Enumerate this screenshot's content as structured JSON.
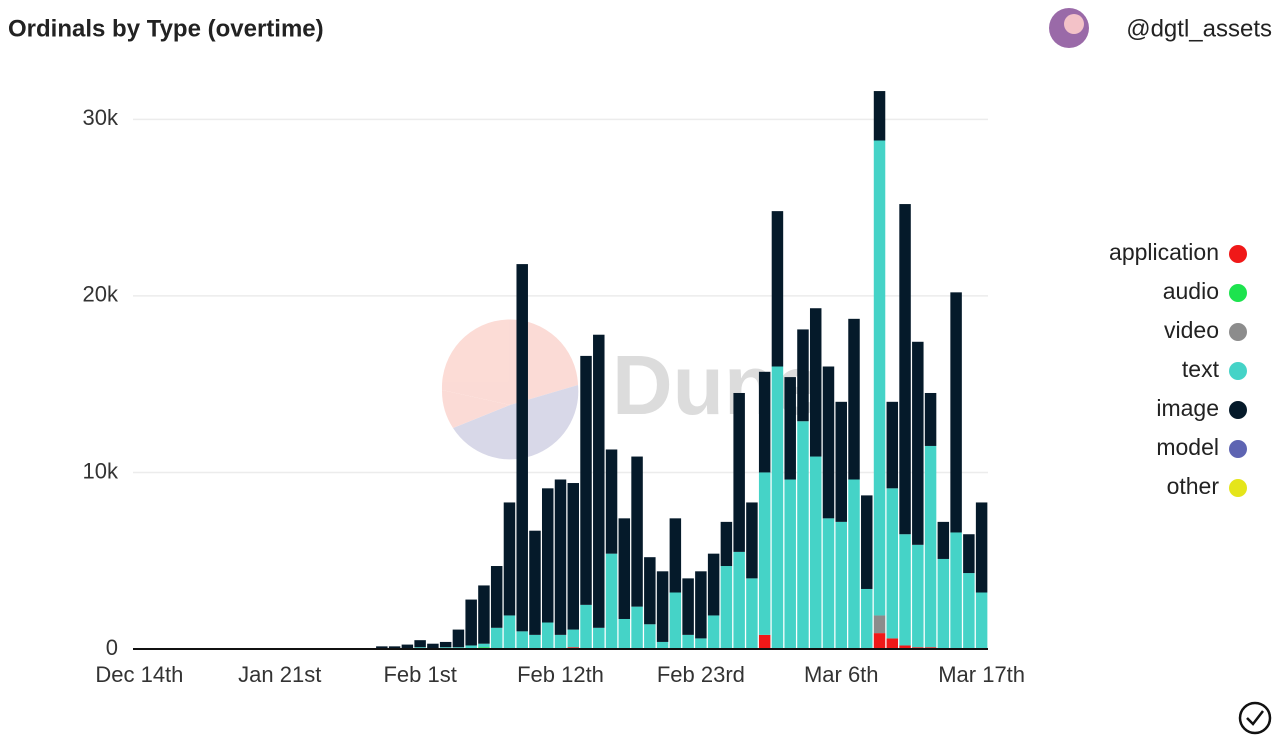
{
  "chart_data": {
    "type": "stacked_bar",
    "title": "Ordinals by Type (overtime)",
    "author": "@dgtl_assets",
    "watermark": "Dune",
    "categories": [
      "Dec 14th",
      null,
      null,
      null,
      null,
      null,
      null,
      null,
      null,
      null,
      null,
      "Jan 21st",
      null,
      null,
      null,
      null,
      null,
      null,
      null,
      null,
      null,
      null,
      "Feb 1st",
      null,
      null,
      null,
      null,
      null,
      null,
      null,
      null,
      null,
      null,
      "Feb 12th",
      null,
      null,
      null,
      null,
      null,
      null,
      null,
      null,
      null,
      null,
      "Feb 23rd",
      null,
      null,
      null,
      null,
      null,
      null,
      null,
      null,
      null,
      null,
      "Mar 6th",
      null,
      null,
      null,
      null,
      null,
      null,
      null,
      null,
      null,
      null,
      "Mar 17th"
    ],
    "series": [
      {
        "name": "application",
        "color": "#f01818",
        "values": [
          0,
          0,
          0,
          0,
          0,
          0,
          0,
          0,
          0,
          0,
          0,
          0,
          0,
          0,
          0,
          0,
          0,
          0,
          0,
          0,
          0,
          0,
          0,
          0,
          0,
          0,
          0,
          0,
          0,
          0,
          0,
          0,
          0,
          0,
          100,
          0,
          0,
          0,
          0,
          0,
          0,
          0,
          0,
          0,
          0,
          0,
          0,
          0,
          0,
          800,
          0,
          0,
          0,
          0,
          0,
          0,
          0,
          0,
          900,
          600,
          200,
          100,
          100,
          0,
          0,
          0,
          0
        ]
      },
      {
        "name": "audio",
        "color": "#1de34e",
        "values": [
          0,
          0,
          0,
          0,
          0,
          0,
          0,
          0,
          0,
          0,
          0,
          0,
          0,
          0,
          0,
          0,
          0,
          0,
          0,
          0,
          0,
          0,
          0,
          0,
          0,
          0,
          0,
          100,
          0,
          0,
          0,
          0,
          0,
          0,
          0,
          0,
          0,
          0,
          0,
          0,
          0,
          0,
          0,
          0,
          0,
          0,
          0,
          0,
          0,
          0,
          0,
          0,
          0,
          0,
          0,
          0,
          0,
          0,
          0,
          0,
          0,
          0,
          0,
          0,
          0,
          0,
          0
        ]
      },
      {
        "name": "video",
        "color": "#8c8c8c",
        "values": [
          0,
          0,
          0,
          0,
          0,
          0,
          0,
          0,
          0,
          0,
          0,
          0,
          0,
          0,
          0,
          0,
          0,
          0,
          0,
          0,
          0,
          0,
          0,
          0,
          0,
          0,
          0,
          0,
          0,
          0,
          0,
          0,
          0,
          0,
          0,
          0,
          0,
          0,
          0,
          0,
          0,
          0,
          0,
          0,
          0,
          0,
          0,
          0,
          0,
          0,
          0,
          0,
          0,
          0,
          0,
          0,
          0,
          0,
          1000,
          0,
          0,
          0,
          0,
          0,
          0,
          0,
          0
        ]
      },
      {
        "name": "text",
        "color": "#45d3c7",
        "values": [
          0,
          0,
          0,
          0,
          0,
          0,
          0,
          0,
          0,
          0,
          0,
          0,
          0,
          0,
          0,
          0,
          0,
          0,
          0,
          0,
          0,
          50,
          100,
          50,
          100,
          100,
          200,
          200,
          1200,
          1900,
          1000,
          800,
          1500,
          800,
          1000,
          2500,
          1200,
          5400,
          1700,
          2400,
          1400,
          400,
          3200,
          800,
          600,
          1900,
          4700,
          5500,
          4000,
          9200,
          16000,
          9600,
          12900,
          10900,
          7400,
          7200,
          9600,
          3400,
          26900,
          8500,
          6300,
          5800,
          11400,
          5100,
          6600,
          4300,
          3200
        ]
      },
      {
        "name": "image",
        "color": "#051a2a",
        "values": [
          50,
          50,
          50,
          50,
          50,
          50,
          50,
          50,
          50,
          50,
          50,
          50,
          50,
          50,
          50,
          50,
          50,
          50,
          50,
          150,
          150,
          200,
          400,
          250,
          300,
          1000,
          2600,
          3300,
          3500,
          6400,
          20800,
          5900,
          7600,
          8800,
          8300,
          14100,
          16600,
          5900,
          5700,
          8500,
          3800,
          4000,
          4200,
          3200,
          3800,
          3500,
          2500,
          9000,
          4300,
          5700,
          8800,
          5800,
          5200,
          8400,
          8600,
          6800,
          9100,
          5300,
          2800,
          4900,
          18700,
          11500,
          3000,
          2100,
          13600,
          2200,
          5100
        ]
      },
      {
        "name": "model",
        "color": "#5e64b2",
        "values": [
          0,
          0,
          0,
          0,
          0,
          0,
          0,
          0,
          0,
          0,
          0,
          0,
          0,
          0,
          0,
          0,
          0,
          0,
          0,
          0,
          0,
          0,
          0,
          0,
          0,
          0,
          0,
          0,
          0,
          0,
          0,
          0,
          0,
          0,
          0,
          0,
          0,
          0,
          0,
          0,
          0,
          0,
          0,
          0,
          0,
          0,
          0,
          0,
          0,
          0,
          0,
          0,
          0,
          0,
          0,
          0,
          0,
          0,
          0,
          0,
          0,
          0,
          0,
          0,
          0,
          0,
          0
        ]
      },
      {
        "name": "other",
        "color": "#e5e51a",
        "values": [
          0,
          0,
          0,
          0,
          0,
          0,
          0,
          0,
          0,
          0,
          0,
          0,
          0,
          0,
          0,
          0,
          0,
          0,
          0,
          0,
          0,
          0,
          0,
          0,
          0,
          0,
          0,
          0,
          0,
          0,
          0,
          0,
          0,
          0,
          0,
          0,
          0,
          0,
          0,
          0,
          0,
          0,
          0,
          0,
          0,
          0,
          0,
          0,
          0,
          0,
          0,
          0,
          0,
          0,
          0,
          0,
          0,
          0,
          0,
          0,
          0,
          0,
          0,
          0,
          0,
          0,
          0
        ]
      }
    ],
    "ylim": [
      0,
      32000
    ],
    "yticks": [
      0,
      {
        "value": 10000,
        "label": "10k"
      },
      {
        "value": 20000,
        "label": "20k"
      },
      {
        "value": 30000,
        "label": "30k"
      }
    ],
    "grid": true,
    "legend": "right"
  }
}
